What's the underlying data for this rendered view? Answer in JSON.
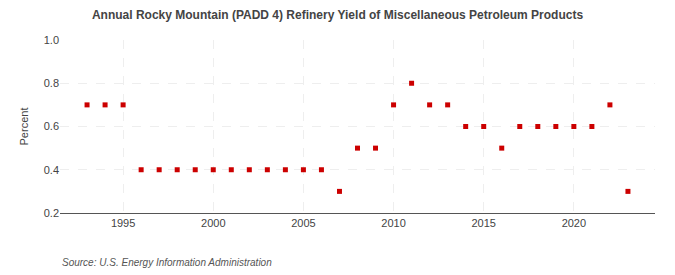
{
  "chart_data": {
    "type": "scatter",
    "title": "Annual Rocky Mountain (PADD 4) Refinery Yield of Miscellaneous Petroleum Products",
    "ylabel": "Percent",
    "annotations": [
      "Source: U.S. Energy Information Administration"
    ],
    "x": [
      1993,
      1994,
      1995,
      1996,
      1997,
      1998,
      1999,
      2000,
      2001,
      2002,
      2003,
      2004,
      2005,
      2006,
      2007,
      2008,
      2009,
      2010,
      2011,
      2012,
      2013,
      2014,
      2015,
      2016,
      2017,
      2018,
      2019,
      2020,
      2021,
      2022,
      2023
    ],
    "values": [
      0.7,
      0.7,
      0.7,
      0.4,
      0.4,
      0.4,
      0.4,
      0.4,
      0.4,
      0.4,
      0.4,
      0.4,
      0.4,
      0.4,
      0.3,
      0.5,
      0.5,
      0.7,
      0.8,
      0.7,
      0.7,
      0.6,
      0.6,
      0.5,
      0.6,
      0.6,
      0.6,
      0.6,
      0.6,
      0.7,
      0.3
    ],
    "color": "#cc0000",
    "marker": "square",
    "xlim": [
      1991.5,
      2024.5
    ],
    "xticks": [
      1995,
      2000,
      2005,
      2010,
      2015,
      2020
    ],
    "ylim": [
      0.2,
      1.0
    ],
    "yticks": [
      0.2,
      0.4,
      0.6,
      0.8,
      {
        "value": 1.0,
        "label": "1.0"
      }
    ],
    "grid": true
  }
}
